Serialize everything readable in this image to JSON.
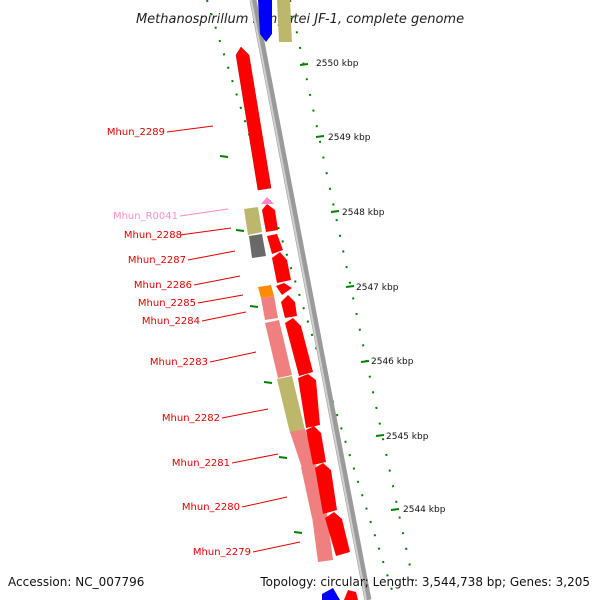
{
  "title": "Methanospirillum hungatei JF-1, complete genome",
  "accession": "Accession: NC_007796",
  "topology": "Topology: circular; Length: 3,544,738 bp; Genes: 3,205",
  "scale_ticks": [
    "2550 kbp",
    "2549 kbp",
    "2548 kbp",
    "2547 kbp",
    "2546 kbp",
    "2545 kbp",
    "2544 kbp"
  ],
  "gene_labels": [
    "Mhun_2289",
    "Mhun_R0041",
    "Mhun_2288",
    "Mhun_2287",
    "Mhun_2286",
    "Mhun_2285",
    "Mhun_2284",
    "Mhun_2283",
    "Mhun_2282",
    "Mhun_2281",
    "Mhun_2280",
    "Mhun_2279"
  ],
  "colors": {
    "cds": "#ff0000",
    "cds_light": "#f08080",
    "olive": "#bdb76b",
    "gray": "#696969",
    "orange": "#ff8c00",
    "rna": "#ff88cc",
    "blue": "#0000ff",
    "tick": "#008000",
    "backbone": "#888888"
  }
}
